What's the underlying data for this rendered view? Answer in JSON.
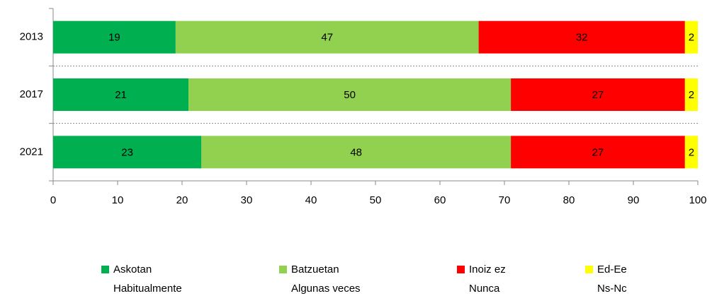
{
  "chart_data": {
    "type": "stacked_barh",
    "categories": [
      "2013",
      "2017",
      "2021"
    ],
    "series": [
      {
        "name": "Askotan\nHabitualmente",
        "color": "#00b050",
        "values": [
          19,
          21,
          23
        ]
      },
      {
        "name": "Batzuetan\nAlgunas veces",
        "color": "#92d050",
        "values": [
          47,
          50,
          48
        ]
      },
      {
        "name": "Inoiz ez\nNunca",
        "color": "#ff0000",
        "values": [
          32,
          27,
          27
        ]
      },
      {
        "name": "Ed-Ee\nNs-Nc",
        "color": "#ffff00",
        "values": [
          2,
          2,
          2
        ]
      }
    ],
    "xlim": [
      0,
      100
    ],
    "xticks": [
      0,
      10,
      20,
      30,
      40,
      50,
      60,
      70,
      80,
      90,
      100
    ],
    "legend": "bottom"
  }
}
